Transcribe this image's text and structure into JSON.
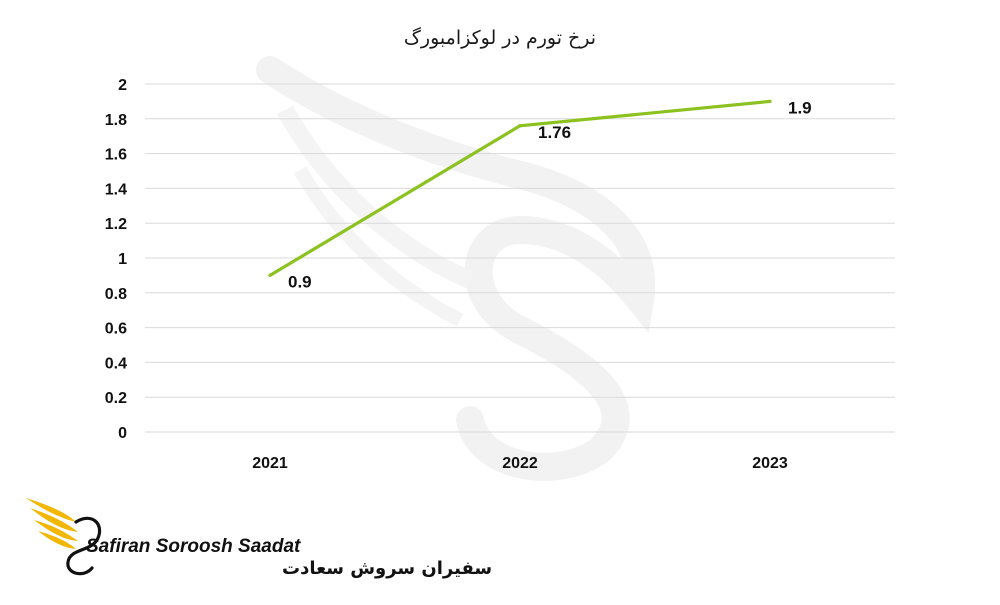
{
  "chart_data": {
    "type": "line",
    "title": "نرخ تورم در لوکزامبورگ",
    "xlabel": "",
    "ylabel": "",
    "categories": [
      "2021",
      "2022",
      "2023"
    ],
    "series": [
      {
        "values": [
          0.9,
          1.76,
          1.9
        ],
        "data_labels": [
          "0.9",
          "1.76",
          "1.9"
        ],
        "color": "#8cc21f"
      }
    ],
    "ylim": [
      0,
      2
    ],
    "yticks": [
      "0",
      "0.2",
      "0.4",
      "0.6",
      "0.8",
      "1",
      "1.2",
      "1.4",
      "1.6",
      "1.8",
      "2"
    ],
    "grid": true,
    "legend": "none"
  },
  "branding": {
    "name_en": "Safiran Soroosh Saadat",
    "name_fa": "سفیران سروش سعادت",
    "logo_color": "#f2b705"
  }
}
